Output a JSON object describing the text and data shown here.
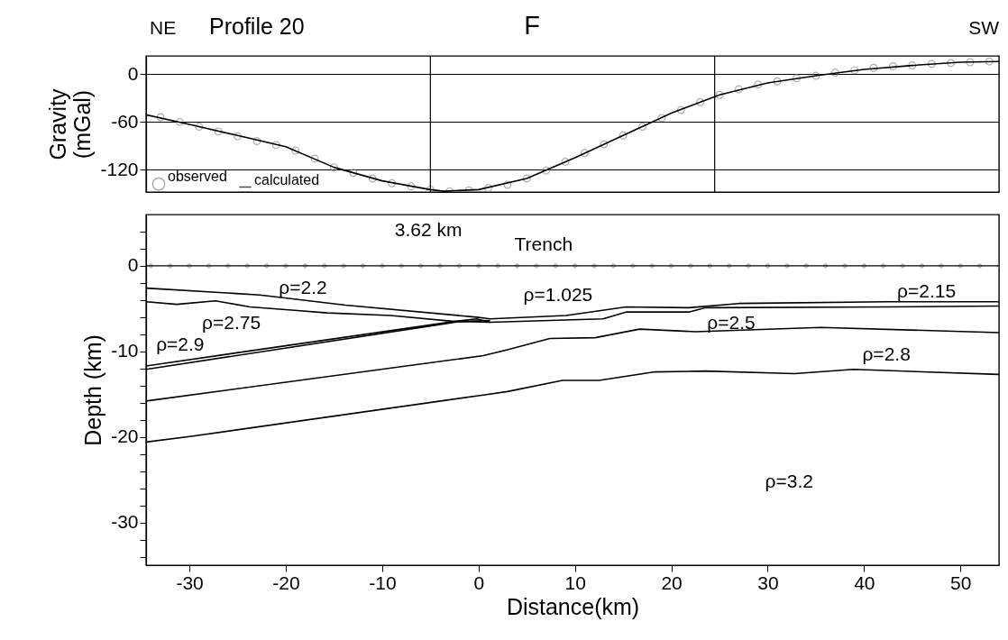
{
  "chart_data": [
    {
      "type": "line",
      "title": "F",
      "ylabel": "Gravity (mGal)",
      "annotations": [
        "NE",
        "Profile 20",
        "SW"
      ],
      "xlim": [
        -34.5,
        54
      ],
      "ylim": [
        -148,
        23
      ],
      "yticks": [
        0,
        -60,
        -120
      ],
      "grid": "y",
      "tick_labels": "y",
      "legend": "bottom left",
      "ref_lines": [
        {
          "axis": "x",
          "value": -5,
          "color": "#000000"
        },
        {
          "axis": "x",
          "value": 24.5,
          "color": "#000000"
        }
      ],
      "series": [
        {
          "name": "observed",
          "type": "scatter",
          "marker": "circle",
          "color": "#8c8c8c",
          "x": [
            -33,
            -31,
            -29,
            -27,
            -25,
            -23,
            -21,
            -19,
            -17,
            -15,
            -13,
            -11,
            -9,
            -7,
            -5,
            -3,
            -1,
            1,
            3,
            5,
            7,
            9,
            11,
            13,
            15,
            17,
            19,
            21,
            23,
            25,
            27,
            29,
            31,
            33,
            35,
            37,
            39,
            41,
            43,
            45,
            47,
            49,
            51,
            53
          ],
          "values": [
            -54,
            -60,
            -66,
            -72,
            -78,
            -84,
            -89,
            -96,
            -106,
            -117,
            -124,
            -131,
            -137,
            -141,
            -145,
            -147,
            -146,
            -143,
            -139,
            -131,
            -121,
            -110,
            -99,
            -88,
            -77,
            -66,
            -55,
            -45,
            -35,
            -26,
            -19,
            -13,
            -9,
            -5,
            -2,
            2,
            5,
            8,
            10,
            11,
            13,
            14,
            15,
            16
          ]
        },
        {
          "name": "calculated",
          "type": "line",
          "color": "#000000",
          "x": [
            -34.5,
            -30,
            -25,
            -20,
            -15,
            -10,
            -5,
            -3.6,
            0,
            5,
            10,
            15,
            20,
            25,
            30,
            35,
            40,
            45,
            50,
            54
          ],
          "values": [
            -51,
            -63,
            -77,
            -91,
            -117,
            -134,
            -145,
            -147,
            -145,
            -131,
            -105,
            -77,
            -49,
            -26,
            -11,
            -2,
            6,
            11,
            15,
            16
          ]
        }
      ]
    },
    {
      "type": "line",
      "xlabel": "Distance(km)",
      "ylabel": "Depth (km)",
      "xlim": [
        -34.5,
        54
      ],
      "xticks": [
        -30,
        -20,
        -10,
        0,
        10,
        20,
        30,
        40,
        50
      ],
      "ylim": [
        -35,
        6
      ],
      "yticks": [
        {
          "value": 4,
          "label": null
        },
        {
          "value": 2,
          "label": null
        },
        0,
        {
          "value": -2,
          "label": null
        },
        {
          "value": -4,
          "label": null
        },
        {
          "value": -6,
          "label": null
        },
        {
          "value": -8,
          "label": null
        },
        -10,
        {
          "value": -12,
          "label": null
        },
        {
          "value": -14,
          "label": null
        },
        {
          "value": -16,
          "label": null
        },
        {
          "value": -18,
          "label": null
        },
        -20,
        {
          "value": -22,
          "label": null
        },
        {
          "value": -24,
          "label": null
        },
        {
          "value": -26,
          "label": null
        },
        {
          "value": -28,
          "label": null
        },
        -30,
        {
          "value": -32,
          "label": null
        },
        {
          "value": -34,
          "label": null
        }
      ],
      "grid": false,
      "ref_lines": [
        {
          "axis": "y",
          "value": 0,
          "color": "#000000"
        }
      ],
      "annotations": [
        "3.62 km",
        "Trench",
        "ρ=2.2",
        "ρ=2.75",
        "ρ=2.9",
        "ρ=1.025",
        "ρ=2.15",
        "ρ=2.5",
        "ρ=2.8",
        "ρ=3.2"
      ],
      "series": [
        {
          "type": "scatter",
          "marker": "cross",
          "color": "#9a9a9a",
          "x": [
            -34,
            -32,
            -30,
            -28,
            -26,
            -24,
            -22,
            -20,
            -18,
            -16,
            -14,
            -12,
            -10,
            -8,
            -6,
            -4,
            -2,
            0,
            2,
            4,
            6,
            8,
            10,
            12,
            14,
            16,
            18,
            20,
            22,
            24,
            26,
            28,
            30,
            32,
            34,
            36,
            38,
            40,
            42,
            44,
            46,
            48,
            50,
            52,
            54
          ],
          "values": [
            0,
            0,
            0,
            0,
            0,
            0,
            0,
            0,
            0,
            0,
            0,
            0,
            0,
            0,
            0,
            0,
            0,
            0,
            0,
            0,
            0,
            0,
            0,
            0,
            0,
            0,
            0,
            0,
            0,
            0,
            0,
            0,
            0,
            0,
            0,
            0,
            0,
            0,
            0,
            0,
            0,
            0,
            0,
            0,
            0
          ]
        },
        {
          "color": "#000000",
          "x": [
            -34.5,
            -22.7,
            -13.8,
            -0.2,
            1.2,
            9.1,
            15.3,
            21.8,
            27,
            42.3,
            54
          ],
          "values": [
            -2.6,
            -3.4,
            -4.6,
            -6.0,
            -6.2,
            -5.8,
            -4.8,
            -4.9,
            -4.4,
            -4.2,
            -4.2
          ]
        },
        {
          "color": "#000000",
          "x": [
            -34.5,
            -31.3,
            -27.3,
            -23.7,
            -19.1,
            -15.7,
            -9.1,
            -2.5,
            -0.2,
            1.2,
            12.9,
            15.3,
            21.8,
            23.5,
            42.3,
            54
          ],
          "values": [
            -4.2,
            -4.5,
            -4.1,
            -4.8,
            -5.2,
            -5.5,
            -5.8,
            -6.5,
            -6.2,
            -6.6,
            -6.2,
            -5.4,
            -5.4,
            -4.9,
            -4.8,
            -4.7
          ]
        },
        {
          "color": "#000000",
          "x": [
            -34.5,
            -2.5,
            1.2
          ],
          "values": [
            -11.7,
            -6.5,
            -6.4
          ]
        },
        {
          "color": "#000000",
          "x": [
            -34.5,
            -1.9,
            1.2
          ],
          "values": [
            -12.1,
            -6.5,
            -6.6
          ]
        },
        {
          "color": "#000000",
          "x": [
            -34.5,
            0.5,
            3,
            7.4,
            12.1,
            16.7,
            22.5,
            35.5,
            54
          ],
          "values": [
            -15.8,
            -10.5,
            -9.8,
            -8.5,
            -8.4,
            -7.4,
            -7.7,
            -7.2,
            -7.8
          ]
        },
        {
          "color": "#000000",
          "x": [
            -34.5,
            -29.6,
            0.5,
            3,
            8.7,
            12.5,
            18.3,
            23.5,
            32.8,
            38.9,
            54
          ],
          "values": [
            -20.6,
            -19.9,
            -15.1,
            -14.7,
            -13.4,
            -13.4,
            -12.4,
            -12.3,
            -12.6,
            -12.1,
            -12.7
          ]
        }
      ]
    }
  ]
}
